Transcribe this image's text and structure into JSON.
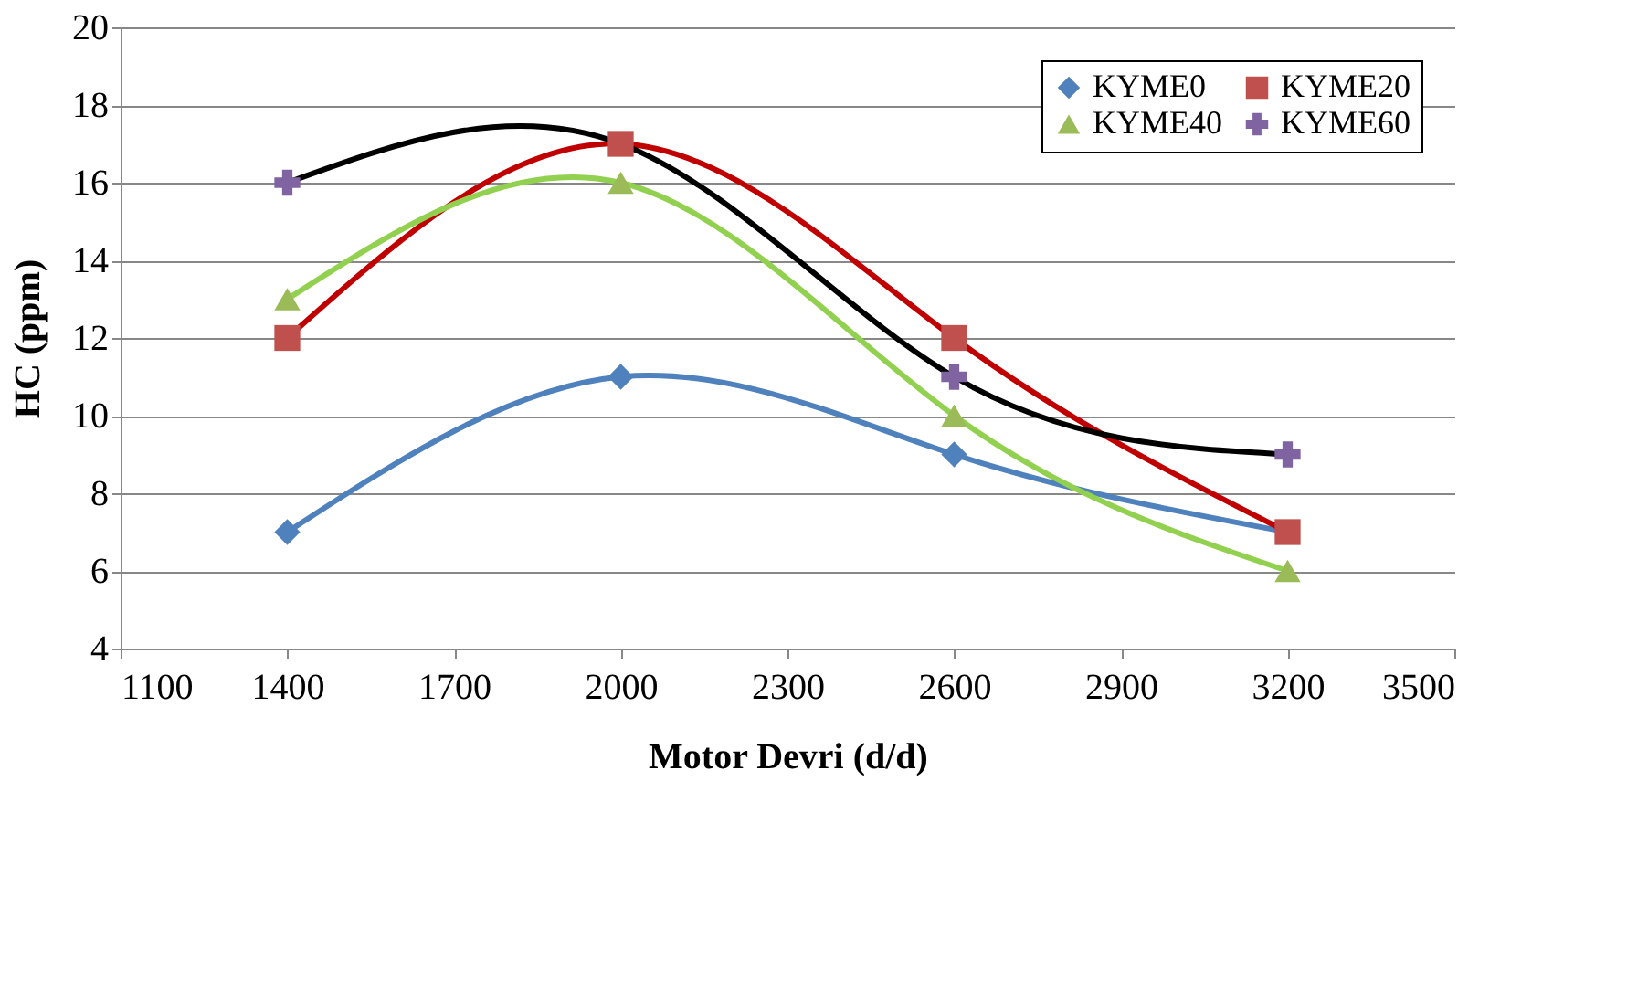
{
  "chart_data": {
    "type": "scatter",
    "xlabel": "Motor Devri (d/d)",
    "ylabel": "HC (ppm)",
    "x": [
      1400,
      2000,
      2600,
      3200
    ],
    "xlim": [
      1100,
      3500
    ],
    "xticks": [
      1100,
      1400,
      1700,
      2000,
      2300,
      2600,
      2900,
      3200,
      3500
    ],
    "ylim": [
      4,
      20
    ],
    "yticks": [
      4,
      6,
      8,
      10,
      12,
      14,
      16,
      18,
      20
    ],
    "grid": "y",
    "legend": "top right",
    "series": [
      {
        "name": "KYME0",
        "color": "#4f81bd",
        "marker": "diamond",
        "values": [
          7,
          11,
          9,
          null
        ]
      },
      {
        "name": "KYME20",
        "color": "#c0504d",
        "marker": "square",
        "values": [
          12,
          17,
          12,
          7
        ]
      },
      {
        "name": "KYME40",
        "color": "#9bbb59",
        "marker": "triangle",
        "values": [
          13,
          16,
          10,
          6
        ]
      },
      {
        "name": "KYME60",
        "color": "#8064a2",
        "marker": "cross",
        "values": [
          16,
          null,
          11,
          9
        ]
      },
      {
        "type": "line",
        "color": "#4f81bd",
        "line_style": "solid",
        "values": [
          7,
          11,
          9,
          7
        ]
      },
      {
        "type": "line",
        "color": "#c00000",
        "line_style": "solid",
        "values": [
          12,
          17,
          12,
          7
        ]
      },
      {
        "type": "line",
        "color": "#92d050",
        "line_style": "solid",
        "values": [
          13,
          16,
          10,
          6
        ]
      },
      {
        "type": "line",
        "color": "#000000",
        "line_style": "solid",
        "values": [
          16,
          17,
          11,
          9
        ]
      }
    ]
  }
}
